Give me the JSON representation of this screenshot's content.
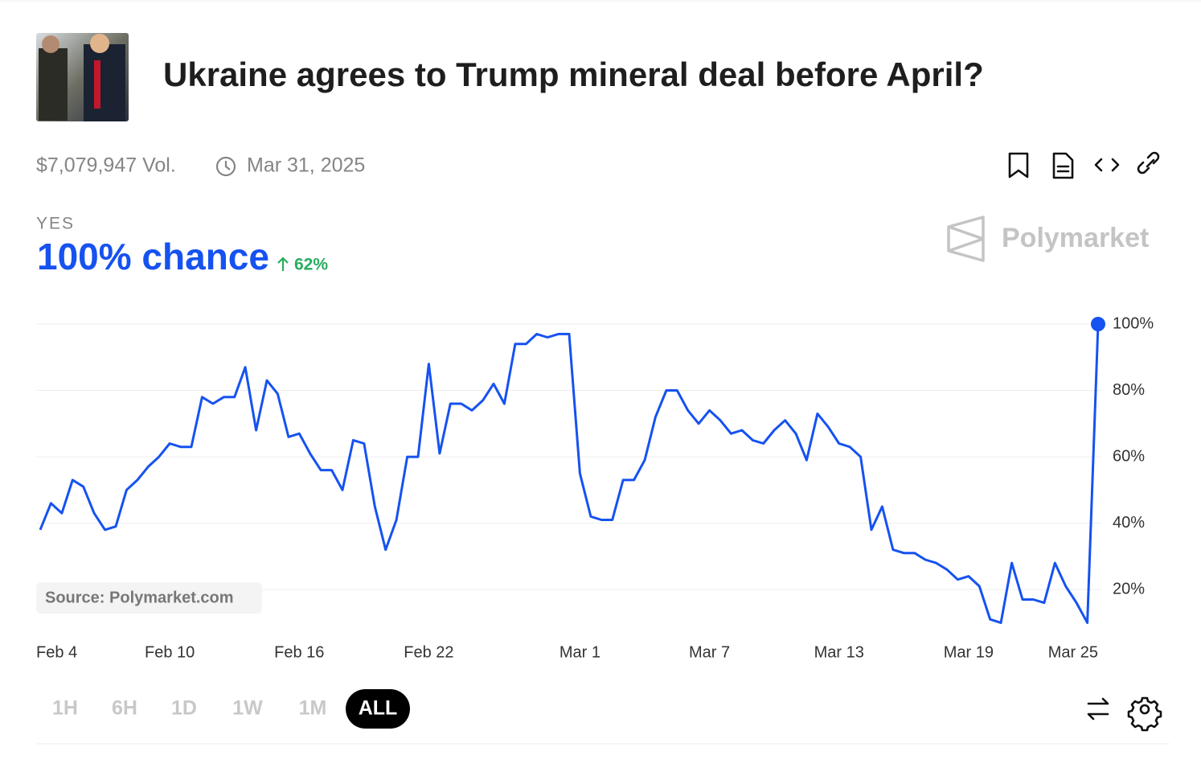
{
  "header": {
    "title": "Ukraine agrees to Trump mineral deal before April?",
    "volume": "$7,079,947 Vol.",
    "end_date": "Mar 31, 2025"
  },
  "outcome": {
    "label": "YES",
    "chance": "100% chance",
    "change": "62%"
  },
  "brand": "Polymarket",
  "source": "Source: Polymarket.com",
  "ranges": [
    "1H",
    "6H",
    "1D",
    "1W",
    "1M",
    "ALL"
  ],
  "active_range": "ALL",
  "chart_data": {
    "type": "line",
    "color": "#1652f0",
    "categories": [
      "Feb 4",
      null,
      null,
      null,
      null,
      null,
      null,
      null,
      null,
      null,
      null,
      null,
      "Feb 10",
      null,
      null,
      null,
      null,
      null,
      null,
      null,
      null,
      null,
      null,
      null,
      "Feb 16",
      null,
      null,
      null,
      null,
      null,
      null,
      null,
      null,
      null,
      null,
      null,
      "Feb 22",
      null,
      null,
      null,
      null,
      null,
      null,
      null,
      null,
      null,
      null,
      null,
      null,
      null,
      "Mar 1",
      null,
      null,
      null,
      null,
      null,
      null,
      null,
      null,
      null,
      null,
      null,
      "Mar 7",
      null,
      null,
      null,
      null,
      null,
      null,
      null,
      null,
      null,
      null,
      null,
      "Mar 13",
      null,
      null,
      null,
      null,
      null,
      null,
      null,
      null,
      null,
      null,
      null,
      "Mar 19",
      null,
      null,
      null,
      null,
      null,
      null,
      null,
      null,
      null,
      null,
      null,
      "Mar 25"
    ],
    "values": [
      38,
      46,
      43,
      53,
      51,
      43,
      38,
      39,
      50,
      53,
      57,
      60,
      64,
      63,
      63,
      78,
      76,
      78,
      78,
      87,
      68,
      83,
      79,
      66,
      67,
      61,
      56,
      56,
      50,
      65,
      64,
      45,
      32,
      41,
      60,
      60,
      88,
      61,
      76,
      76,
      74,
      77,
      82,
      76,
      94,
      94,
      97,
      96,
      97,
      97,
      55,
      42,
      41,
      41,
      53,
      53,
      59,
      72,
      80,
      80,
      74,
      70,
      74,
      71,
      67,
      68,
      65,
      64,
      68,
      71,
      67,
      59,
      73,
      69,
      64,
      63,
      60,
      38,
      45,
      32,
      31,
      31,
      29,
      28,
      26,
      23,
      24,
      21,
      11,
      10,
      28,
      17,
      17,
      16,
      28,
      21,
      16,
      10,
      100
    ],
    "ylim": [
      5,
      100
    ],
    "yticks": [
      {
        "value": 20,
        "label": "20%"
      },
      {
        "value": 40,
        "label": "40%"
      },
      {
        "value": 60,
        "label": "60%"
      },
      {
        "value": 80,
        "label": "80%"
      },
      {
        "value": 100,
        "label": "100%"
      }
    ],
    "grid": true
  }
}
